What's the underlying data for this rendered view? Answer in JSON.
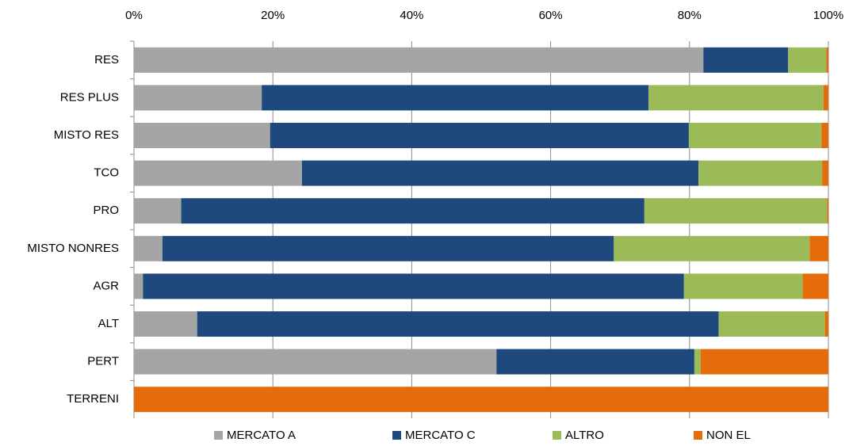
{
  "chart_data": {
    "type": "stacked_bar_horizontal",
    "categories": [
      "RES",
      "RES PLUS",
      "MISTO RES",
      "TCO",
      "PRO",
      "MISTO NONRES",
      "AGR",
      "ALT",
      "PERT",
      "TERRENI"
    ],
    "series": [
      {
        "name": "MERCATO A",
        "color": "#a5a5a5",
        "values": [
          82.0,
          18.4,
          19.6,
          24.2,
          6.8,
          4.1,
          1.3,
          9.1,
          52.2,
          0
        ]
      },
      {
        "name": "MERCATO C",
        "color": "#1f497d",
        "values": [
          12.2,
          55.7,
          60.3,
          57.1,
          66.7,
          65.0,
          77.9,
          75.1,
          28.5,
          0
        ]
      },
      {
        "name": "ALTRO",
        "color": "#9bbb59",
        "values": [
          5.5,
          25.2,
          19.1,
          17.8,
          26.3,
          28.2,
          17.1,
          15.3,
          0.9,
          0
        ]
      },
      {
        "name": "NON EL",
        "color": "#e46c0a",
        "values": [
          0.3,
          0.7,
          1.0,
          0.9,
          0.2,
          2.7,
          3.7,
          0.5,
          18.4,
          100
        ]
      }
    ],
    "xlim": [
      0,
      100
    ],
    "xticks": [
      {
        "value": 0,
        "label": "0%"
      },
      {
        "value": 20,
        "label": "20%"
      },
      {
        "value": 40,
        "label": "40%"
      },
      {
        "value": 60,
        "label": "60%"
      },
      {
        "value": 80,
        "label": "80%"
      },
      {
        "value": 100,
        "label": "100%"
      }
    ],
    "grid": true,
    "legend": "bottom"
  }
}
